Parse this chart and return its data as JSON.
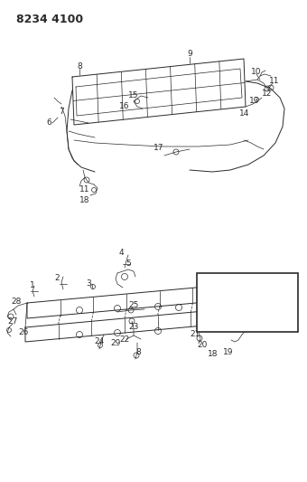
{
  "title": "8234 4100",
  "bg_color": "#ffffff",
  "line_color": "#2a2a2a",
  "title_fontsize": 9,
  "label_fontsize": 6.5,
  "fig_width": 3.4,
  "fig_height": 5.33,
  "dpi": 100
}
